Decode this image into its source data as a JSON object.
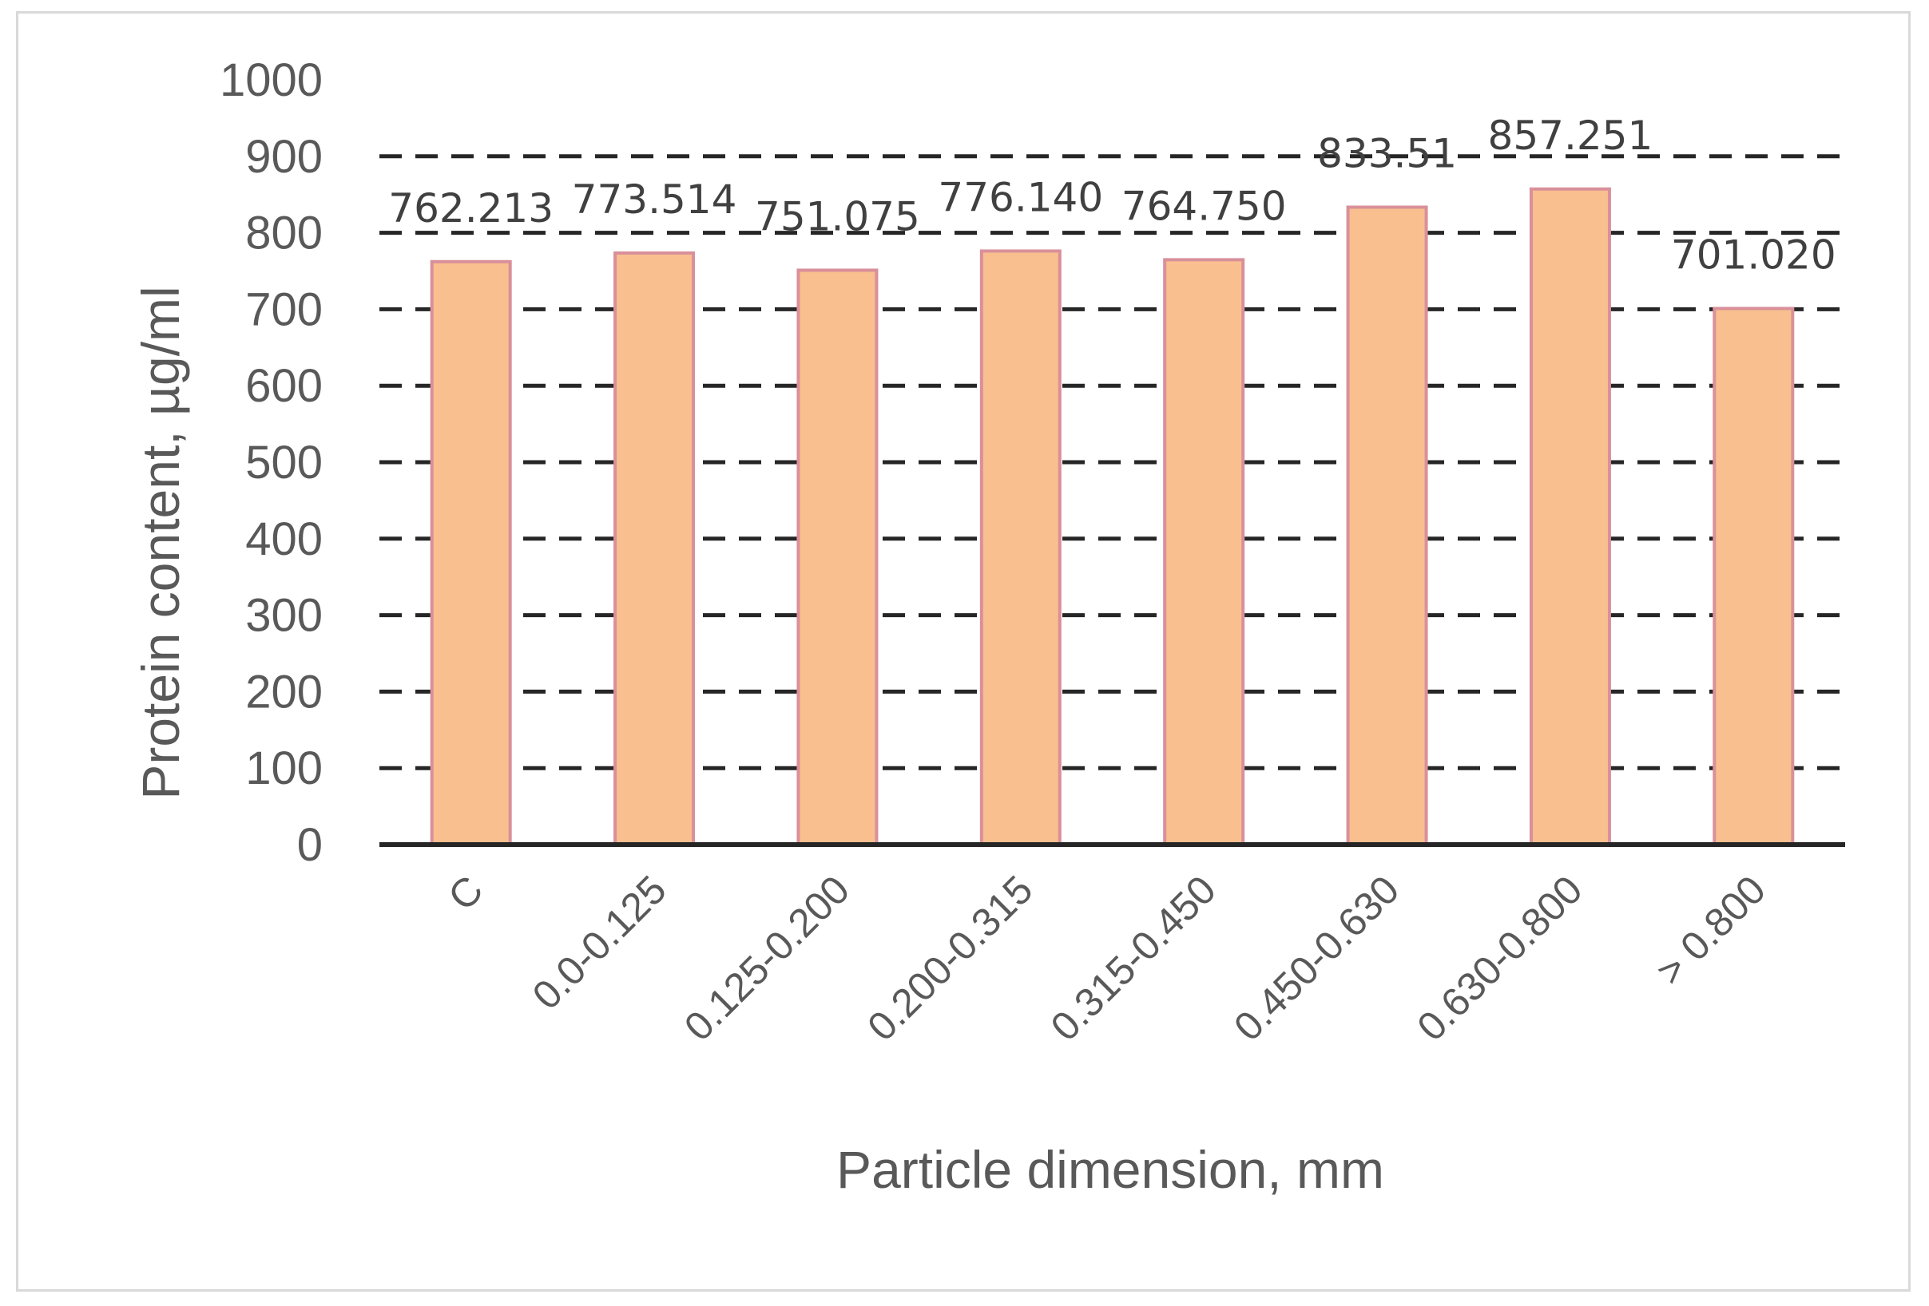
{
  "chart_data": {
    "type": "bar",
    "categories": [
      "C",
      "0.0-0.125",
      "0.125-0.200",
      "0.200-0.315",
      "0.315-0.450",
      "0.450-0.630",
      "0.630-0.800",
      "> 0.800"
    ],
    "values": [
      762.213,
      773.514,
      751.075,
      776.14,
      764.75,
      833.51,
      857.251,
      701.02
    ],
    "data_labels": [
      "762.213",
      "773.514",
      "751.075",
      "776.140",
      "764.750",
      "833.51",
      "857.251",
      "701.020"
    ],
    "title": "",
    "xlabel": "Particle dimension, mm",
    "ylabel": "Protein content,  µg/ml",
    "ylim": [
      0,
      1000
    ],
    "yticks": [
      "0",
      "100",
      "200",
      "300",
      "400",
      "500",
      "600",
      "700",
      "800",
      "900",
      "1000"
    ],
    "grid": true,
    "grid_style": "dashed",
    "legend": "none",
    "colors": {
      "bar_fill": "#f9bf8f",
      "bar_stroke": "#d9909a",
      "grid": "#262626",
      "axis": "#262626",
      "text": "#595959",
      "data_label": "#404040",
      "frame": "#d9d9d9"
    }
  }
}
